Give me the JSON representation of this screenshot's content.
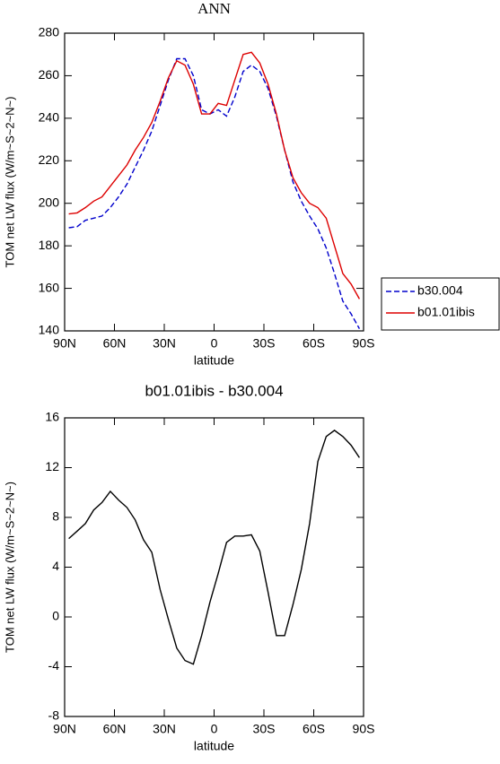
{
  "chart_data": [
    {
      "type": "line",
      "title": "ANN",
      "xlabel": "latitude",
      "ylabel": "TOM net LW flux (W/m~S~2~N~)",
      "x": [
        87.5,
        82.5,
        77.5,
        72.5,
        67.5,
        62.5,
        57.5,
        52.5,
        47.5,
        42.5,
        37.5,
        32.5,
        27.5,
        22.5,
        17.5,
        12.5,
        7.5,
        2.5,
        -2.5,
        -7.5,
        -12.5,
        -17.5,
        -22.5,
        -27.5,
        -32.5,
        -37.5,
        -42.5,
        -47.5,
        -52.5,
        -57.5,
        -62.5,
        -67.5,
        -72.5,
        -77.5,
        -82.5,
        -87.5
      ],
      "series": [
        {
          "name": "b30.004",
          "color": "#0000cc",
          "dashed": true,
          "values": [
            188.5,
            189,
            192,
            193,
            194,
            198,
            203,
            209,
            217,
            225,
            234,
            246,
            258,
            268,
            268,
            260,
            244,
            242,
            244,
            241,
            250,
            262,
            265,
            262,
            254,
            241,
            225,
            210,
            201,
            194,
            188,
            179,
            167,
            154,
            148,
            141
          ]
        },
        {
          "name": "b01.01ibis",
          "color": "#dd0000",
          "dashed": false,
          "values": [
            195,
            195.5,
            198,
            201,
            203,
            208,
            213,
            218,
            225,
            231,
            238,
            248,
            259,
            267,
            265,
            256,
            242,
            242,
            247,
            246,
            258,
            270,
            271,
            266,
            256,
            242,
            225,
            212,
            205,
            200,
            198,
            193,
            180,
            167,
            162,
            155
          ]
        }
      ],
      "xlim": [
        90,
        -90
      ],
      "xticks": [
        {
          "value": 90,
          "label": "90N"
        },
        {
          "value": 60,
          "label": "60N"
        },
        {
          "value": 30,
          "label": "30N"
        },
        0,
        {
          "value": -30,
          "label": "30S"
        },
        {
          "value": -60,
          "label": "60S"
        },
        {
          "value": -90,
          "label": "90S"
        }
      ],
      "ylim": [
        140,
        280
      ],
      "yticks": [
        140,
        160,
        180,
        200,
        220,
        240,
        260,
        280
      ],
      "legend": "right"
    },
    {
      "type": "line",
      "title": "b01.01ibis - b30.004",
      "xlabel": "latitude",
      "ylabel": "TOM net LW flux (W/m~S~2~N~)",
      "x": [
        87.5,
        82.5,
        77.5,
        72.5,
        67.5,
        62.5,
        57.5,
        52.5,
        47.5,
        42.5,
        37.5,
        32.5,
        27.5,
        22.5,
        17.5,
        12.5,
        7.5,
        2.5,
        -2.5,
        -7.5,
        -12.5,
        -17.5,
        -22.5,
        -27.5,
        -32.5,
        -37.5,
        -42.5,
        -47.5,
        -52.5,
        -57.5,
        -62.5,
        -67.5,
        -72.5,
        -77.5,
        -82.5,
        -87.5
      ],
      "series": [
        {
          "color": "#000000",
          "dashed": false,
          "values": [
            6.3,
            6.9,
            7.5,
            8.6,
            9.2,
            10.1,
            9.4,
            8.8,
            7.8,
            6.2,
            5.2,
            2.2,
            -0.2,
            -2.5,
            -3.5,
            -3.8,
            -1.5,
            1.2,
            3.5,
            6.0,
            6.5,
            6.5,
            6.6,
            5.3,
            2,
            -1.5,
            -1.5,
            1,
            3.8,
            7.5,
            12.5,
            14.5,
            15,
            14.5,
            13.8,
            12.8
          ]
        }
      ],
      "xlim": [
        90,
        -90
      ],
      "xticks": [
        {
          "value": 90,
          "label": "90N"
        },
        {
          "value": 60,
          "label": "60N"
        },
        {
          "value": 30,
          "label": "30N"
        },
        0,
        {
          "value": -30,
          "label": "30S"
        },
        {
          "value": -60,
          "label": "60S"
        },
        {
          "value": -90,
          "label": "90S"
        }
      ],
      "ylim": [
        -8,
        16
      ],
      "yticks": [
        -8,
        -4,
        0,
        4,
        8,
        12,
        16
      ]
    }
  ]
}
